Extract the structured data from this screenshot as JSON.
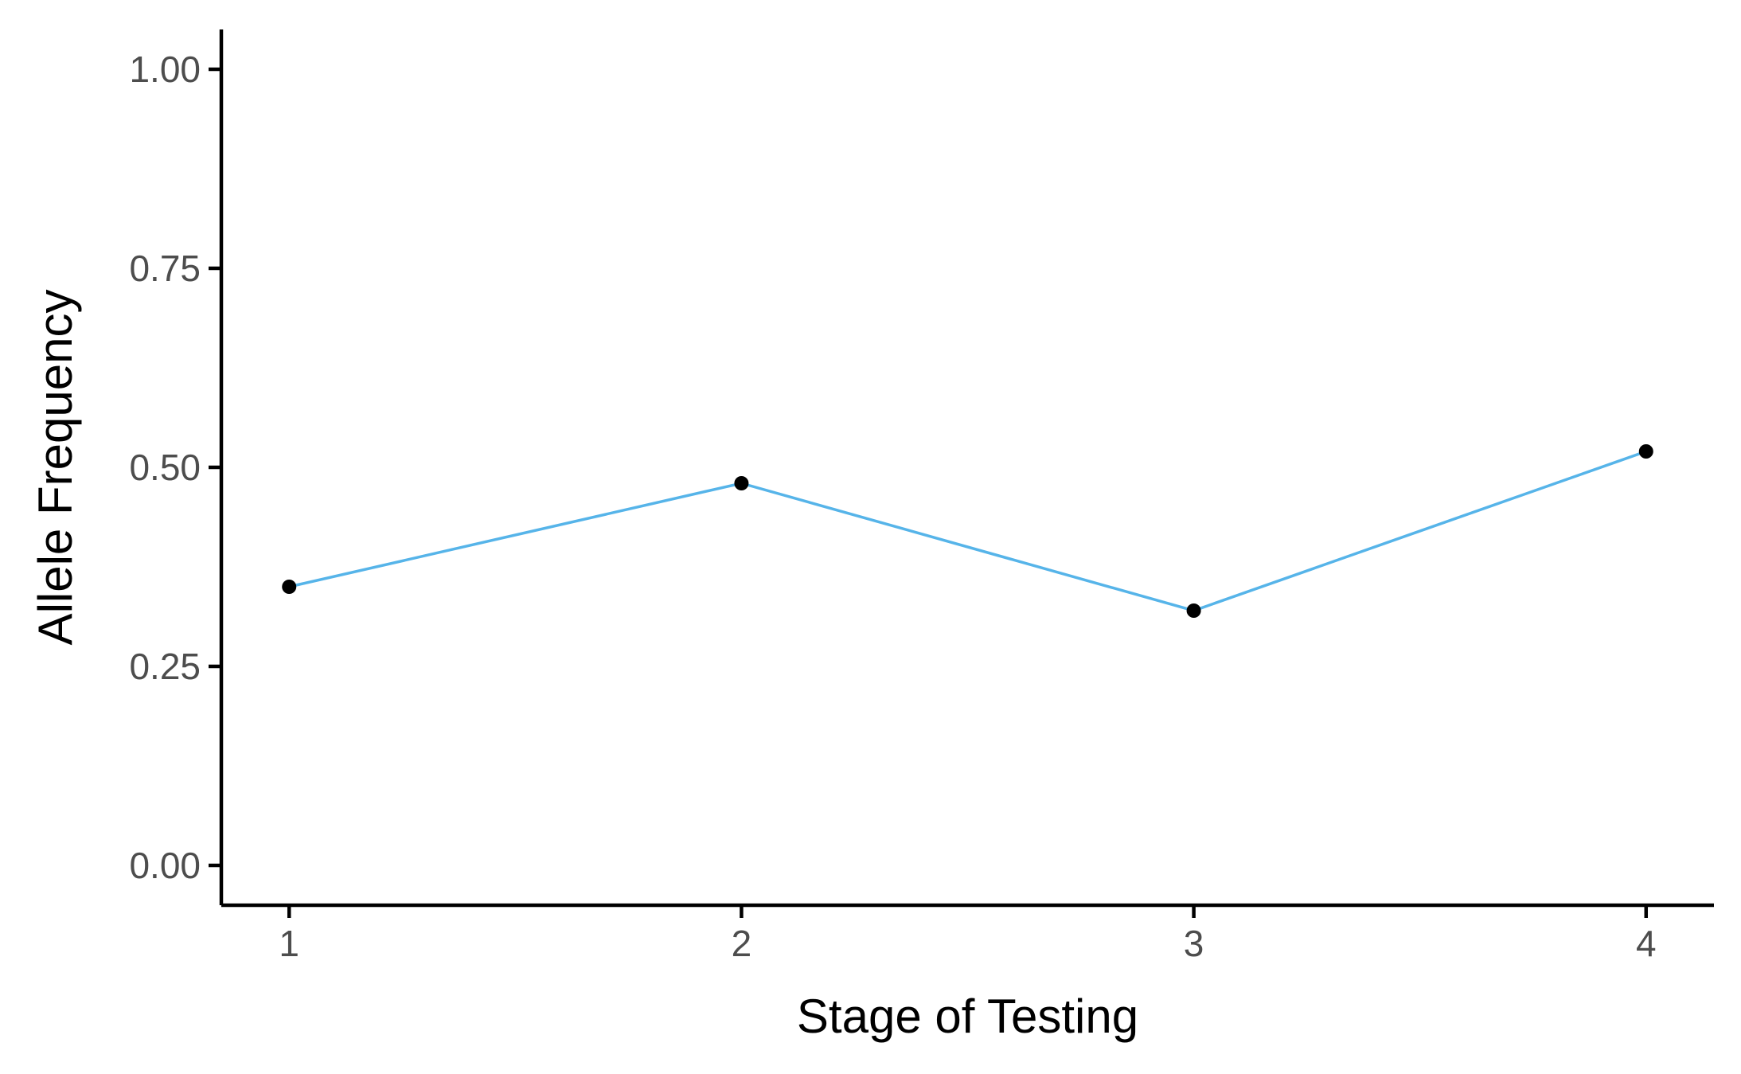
{
  "chart_data": {
    "type": "line",
    "title": "",
    "xlabel": "Stage of Testing",
    "ylabel": "Allele Frequency",
    "x": [
      1,
      2,
      3,
      4
    ],
    "x_tick_labels": [
      "1",
      "2",
      "3",
      "4"
    ],
    "y_ticks": [
      0,
      0.25,
      0.5,
      0.75,
      1
    ],
    "y_tick_labels": [
      "0.00",
      "0.25",
      "0.50",
      "0.75",
      "1.00"
    ],
    "xlim": [
      0.85,
      4.15
    ],
    "ylim": [
      -0.05,
      1.05
    ],
    "series": [
      {
        "values": [
          0.35,
          0.48,
          0.32,
          0.52
        ],
        "line_color": "#56B4E9",
        "point_color": "#000000"
      }
    ],
    "grid": false,
    "legend": "none"
  }
}
